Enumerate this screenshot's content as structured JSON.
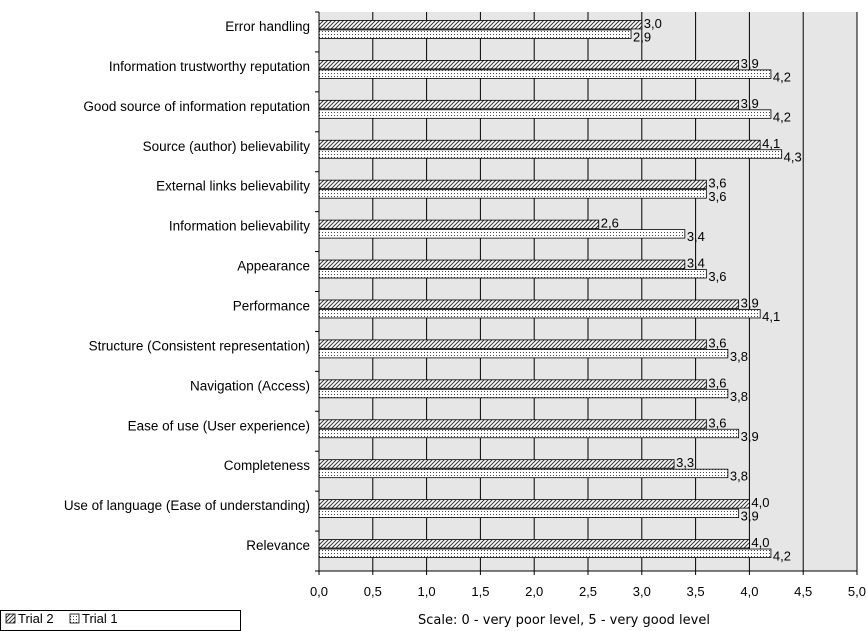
{
  "chart_data": {
    "type": "bar",
    "orientation": "horizontal",
    "categories": [
      "Error handling",
      "Information trustworthy reputation",
      "Good source of information reputation",
      "Source (author) believability",
      "External links believability",
      "Information believability",
      "Appearance",
      "Performance",
      "Structure (Consistent representation)",
      "Navigation (Access)",
      "Ease of use (User experience)",
      "Completeness",
      "Use of language (Ease of understanding)",
      "Relevance"
    ],
    "series": [
      {
        "name": "Trial 2",
        "values": [
          3.0,
          3.9,
          3.9,
          4.1,
          3.6,
          2.6,
          3.4,
          3.9,
          3.6,
          3.6,
          3.6,
          3.3,
          4.0,
          4.0
        ],
        "labels": [
          "3,0",
          "3,9",
          "3,9",
          "4,1",
          "3,6",
          "2,6",
          "3,4",
          "3,9",
          "3,6",
          "3,6",
          "3,6",
          "3,3",
          "4,0",
          "4,0"
        ]
      },
      {
        "name": "Trial 1",
        "values": [
          2.9,
          4.2,
          4.2,
          4.3,
          3.6,
          3.4,
          3.6,
          4.1,
          3.8,
          3.8,
          3.9,
          3.8,
          3.9,
          4.2
        ],
        "labels": [
          "2,9",
          "4,2",
          "4,2",
          "4,3",
          "3,6",
          "3,4",
          "3,6",
          "4,1",
          "3,8",
          "3,8",
          "3,9",
          "3,8",
          "3,9",
          "4,2"
        ]
      }
    ],
    "xlim": [
      0,
      5
    ],
    "xticks": [
      "0,0",
      "0,5",
      "1,0",
      "1,5",
      "2,0",
      "2,5",
      "3,0",
      "3,5",
      "4,0",
      "4,5",
      "5,0"
    ],
    "xlabel": "Scale: 0 - very poor level, 5 - very good level",
    "title": "",
    "ylabel": "",
    "grid": true,
    "legend_position": "bottom-left",
    "plot_background": "#e6e6e6"
  }
}
